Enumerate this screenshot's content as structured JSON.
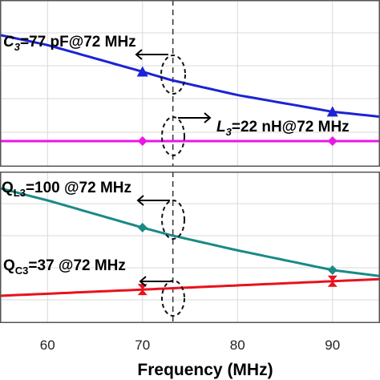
{
  "chart_data": [
    {
      "type": "line",
      "panel": "top",
      "x_range": [
        55,
        95
      ],
      "y_range": [
        0,
        1
      ],
      "grid": true,
      "series": [
        {
          "values_x": [
            55,
            60,
            70,
            73,
            80,
            90,
            95
          ],
          "values_y": [
            0.79,
            0.73,
            0.57,
            0.52,
            0.43,
            0.33,
            0.3
          ],
          "color": "#1c23d4",
          "marker": "triangle",
          "marker_x": [
            70,
            90
          ]
        },
        {
          "values_x": [
            55,
            95
          ],
          "values_y": [
            0.0,
            0.0
          ],
          "color": "#e817e6",
          "marker": "diamond",
          "marker_x": [
            70,
            90
          ]
        }
      ],
      "annotations": [
        {
          "text": "C",
          "sub": "3",
          "rest": "=77 pF@72 MHz",
          "italic_main": true,
          "arrow": "left"
        },
        {
          "text": "L",
          "sub": "3",
          "rest": "=22 nH@72 MHz",
          "italic_main": true,
          "arrow": "right"
        }
      ]
    },
    {
      "type": "line",
      "panel": "bottom",
      "x_range": [
        55,
        95
      ],
      "y_range": [
        0,
        1
      ],
      "grid": true,
      "x_ticks": [
        "60",
        "70",
        "80",
        "90"
      ],
      "xlabel": "Frequency (MHz)",
      "series": [
        {
          "values_x": [
            55,
            60,
            70,
            73,
            80,
            90,
            95
          ],
          "values_y": [
            0.89,
            0.81,
            0.63,
            0.58,
            0.48,
            0.35,
            0.31
          ],
          "color": "#1a8a86",
          "marker": "diamond",
          "marker_x": [
            70,
            90
          ]
        },
        {
          "values_x": [
            55,
            95
          ],
          "values_y": [
            0.18,
            0.29
          ],
          "color": "#e8121e",
          "marker": "hourglass",
          "marker_x": [
            70,
            90
          ]
        }
      ],
      "annotations": [
        {
          "text": "Q",
          "sub": "L3",
          "rest": "=100 @72 MHz",
          "italic_main": false,
          "arrow": "left"
        },
        {
          "text": "Q",
          "sub": "C3",
          "rest": "=37 @72 MHz",
          "italic_main": false,
          "arrow": "left"
        }
      ]
    }
  ]
}
